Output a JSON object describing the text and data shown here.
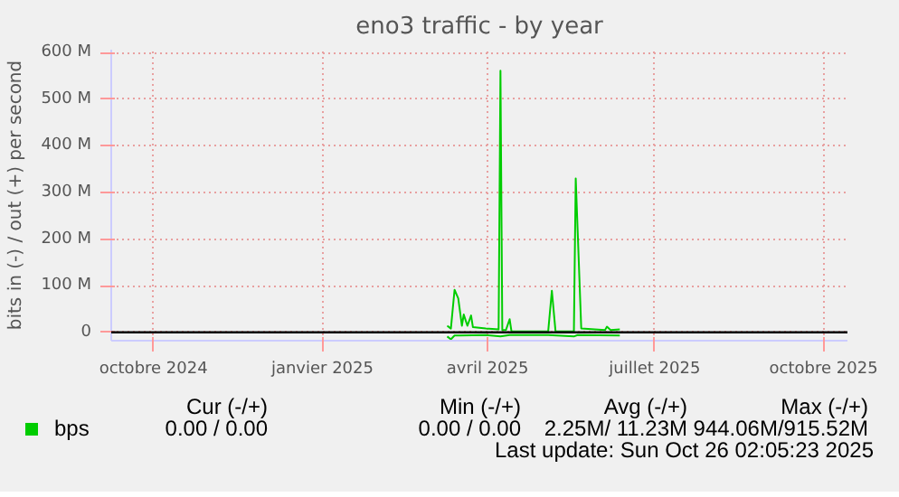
{
  "chart_data": {
    "type": "line",
    "title": "eno3 traffic - by year",
    "ylabel": "bits in (-) / out (+) per second",
    "xlim": [
      "2024-09-08",
      "2025-10-14"
    ],
    "ylim": [
      -18000000,
      606000000
    ],
    "xticks": [
      {
        "value": "2024-10-01",
        "label": "octobre 2024"
      },
      {
        "value": "2025-01-01",
        "label": "janvier 2025"
      },
      {
        "value": "2025-04-01",
        "label": "avril 2025"
      },
      {
        "value": "2025-07-01",
        "label": "juillet 2025"
      },
      {
        "value": "2025-10-01",
        "label": "octobre 2025"
      }
    ],
    "yticks": [
      0,
      {
        "value": 100000000,
        "label": "100 M"
      },
      {
        "value": 200000000,
        "label": "200 M"
      },
      {
        "value": 300000000,
        "label": "300 M"
      },
      {
        "value": 400000000,
        "label": "400 M"
      },
      {
        "value": 500000000,
        "label": "500 M"
      },
      {
        "value": 600000000,
        "label": "600 M"
      }
    ],
    "grid": true,
    "legend": "bottom",
    "marker": "none",
    "line_style": "solid",
    "series": [
      {
        "name": "bps",
        "color": "#00cc00",
        "x": [
          "2025-03-10",
          "2025-03-12",
          "2025-03-14",
          "2025-03-16",
          "2025-03-18",
          "2025-03-19",
          "2025-03-21",
          "2025-03-23",
          "2025-03-24",
          "2025-03-31",
          "2025-04-07",
          "2025-04-08",
          "2025-04-09",
          "2025-04-11",
          "2025-04-13",
          "2025-04-14",
          "2025-05-04",
          "2025-05-06",
          "2025-05-08",
          "2025-05-18",
          "2025-05-19",
          "2025-05-22",
          "2025-06-04",
          "2025-06-05",
          "2025-06-07",
          "2025-06-12"
        ],
        "values": [
          14000000,
          8000000,
          91000000,
          73000000,
          14000000,
          38000000,
          14000000,
          36000000,
          11000000,
          8000000,
          6000000,
          561000000,
          5000000,
          5000000,
          28000000,
          2000000,
          2000000,
          89000000,
          2000000,
          2000000,
          330000000,
          8000000,
          5000000,
          12000000,
          5000000,
          6000000
        ]
      },
      {
        "color": "#00cc00",
        "x": [
          "2025-03-10",
          "2025-03-12",
          "2025-03-14",
          "2025-03-31",
          "2025-04-08",
          "2025-04-13",
          "2025-05-04",
          "2025-05-18",
          "2025-05-20",
          "2025-06-12"
        ],
        "values": [
          -9000000,
          -15000000,
          -7000000,
          -6000000,
          -9000000,
          -6000000,
          -6000000,
          -9000000,
          -6000000,
          -7000000
        ]
      }
    ],
    "ref_lines": [
      {
        "axis": "y",
        "value": 0,
        "color": "#000000"
      }
    ],
    "annotations": [
      "Cur (-/+)",
      "Min (-/+)",
      "Avg (-/+)",
      "Max (-/+)",
      "0.00 /   0.00",
      "0.00 /   0.00",
      "2.25M/  11.23M",
      "944.06M/915.52M",
      "Last update: Sun Oct 26 02:05:23 2025"
    ]
  }
}
